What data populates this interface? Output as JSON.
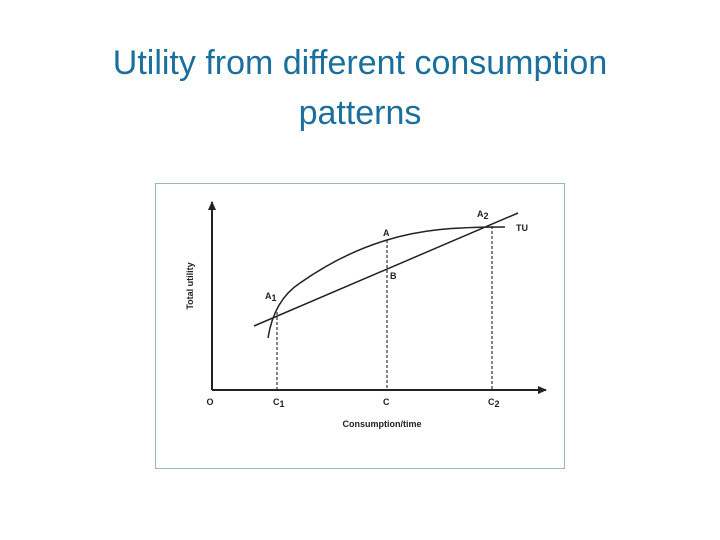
{
  "title": "Utility from different consumption patterns",
  "diagram": {
    "y_axis_label": "Total utility",
    "x_axis_label": "Consumption/time",
    "origin": "O",
    "x_marks": [
      {
        "text": "C",
        "sub": "1"
      },
      {
        "text": "C"
      },
      {
        "text": "C",
        "sub": "2"
      }
    ],
    "points": [
      {
        "text": "A",
        "sub": "1"
      },
      {
        "text": "A"
      },
      {
        "text": "A",
        "sub": "2"
      },
      {
        "text": "B"
      }
    ],
    "curve_label": "TU"
  }
}
